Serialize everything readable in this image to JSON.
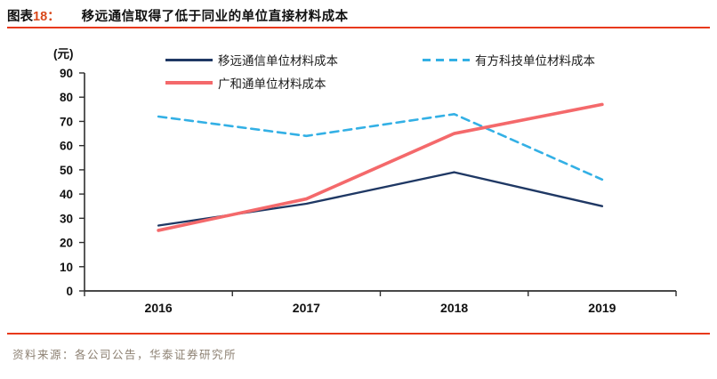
{
  "header": {
    "figure_word": "图表",
    "figure_number": "18：",
    "title": "移远通信取得了低于同业的单位直接材料成本"
  },
  "footer": {
    "source": "资料来源：各公司公告，华泰证券研究所"
  },
  "colors": {
    "rule_red": "#e8391a",
    "figure_number_red": "#d9481b",
    "axis": "#2e2e2e",
    "tick_text": "#111111",
    "source_text": "#8d8173"
  },
  "chart_data": {
    "type": "line",
    "unit_label": "(元)",
    "categories": [
      "2016",
      "2017",
      "2018",
      "2019"
    ],
    "series": [
      {
        "name": "移远通信单位材料成本",
        "color": "#1f3864",
        "style": "solid",
        "line_width": 2.4,
        "values": [
          27,
          36,
          49,
          35
        ]
      },
      {
        "name": "有方科技单位材料成本",
        "color": "#33b0e5",
        "style": "dashed",
        "line_width": 2.6,
        "values": [
          72,
          64,
          73,
          46
        ]
      },
      {
        "name": "广和通单位材料成本",
        "color": "#f4696b",
        "style": "solid",
        "line_width": 3.6,
        "values": [
          25,
          38,
          65,
          77
        ]
      }
    ],
    "ylim": [
      0,
      90
    ],
    "ytick_step": 10,
    "legend_position": "top-left-two-column",
    "grid": false
  }
}
